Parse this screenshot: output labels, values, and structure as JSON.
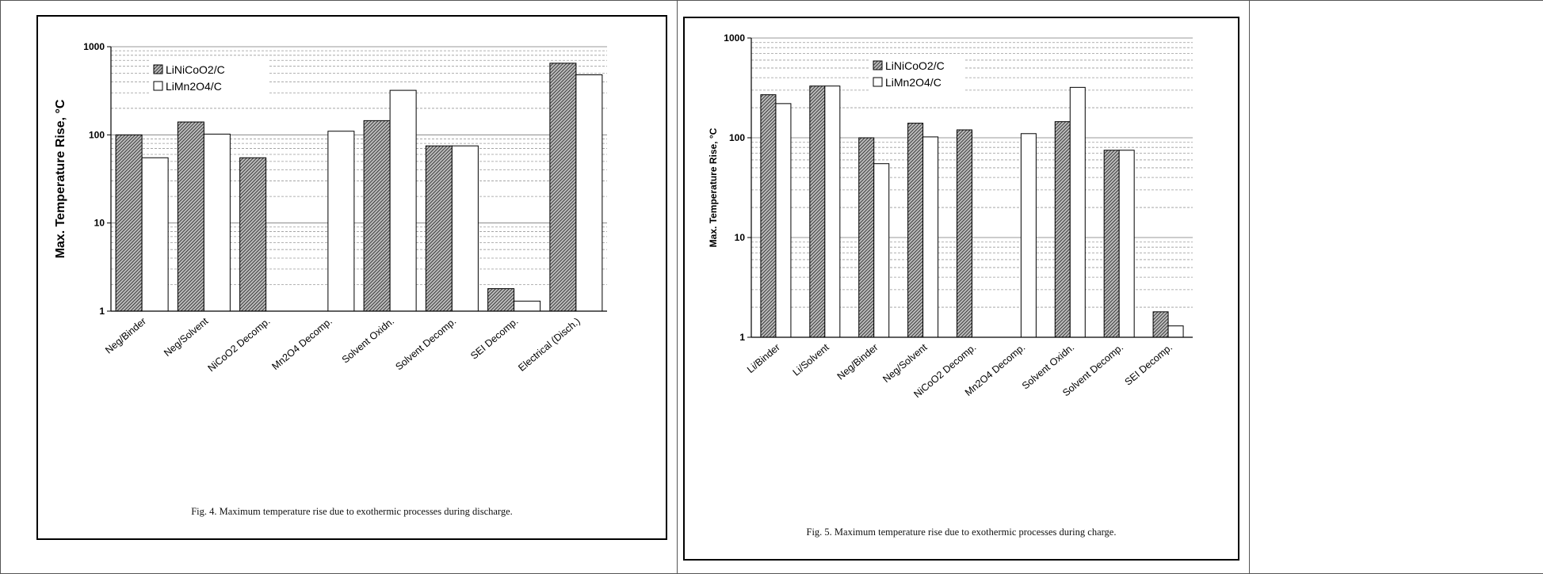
{
  "figures": [
    {
      "caption": "Fig. 4.  Maximum temperature rise due to exothermic processes during discharge.",
      "chart_data": {
        "type": "bar",
        "scale": "log",
        "ylabel": "Max. Temperature Rise, °C",
        "ylim": [
          1,
          1000
        ],
        "yticks": [
          "1",
          "10",
          "100",
          "1000"
        ],
        "categories": [
          "Neg/Binder",
          "Neg/Solvent",
          "NiCoO2 Decomp.",
          "Mn2O4 Decomp.",
          "Solvent Oxidn.",
          "Solvent Decomp.",
          "SEI Decomp.",
          "Electrical (Disch.)"
        ],
        "series": [
          {
            "name": "LiNiCoO2/C",
            "values": [
              100,
              140,
              55,
              null,
              145,
              75,
              1.8,
              650
            ],
            "fill": "hatched"
          },
          {
            "name": "LiMn2O4/C",
            "values": [
              55,
              102,
              null,
              110,
              320,
              75,
              1.3,
              480
            ],
            "fill": "white"
          }
        ],
        "grid": true,
        "legend_position": "top-left"
      }
    },
    {
      "caption": "Fig. 5.  Maximum temperature rise due to exothermic processes during charge.",
      "chart_data": {
        "type": "bar",
        "scale": "log",
        "ylabel": "Max. Temperature Rise, °C",
        "ylim": [
          1,
          1000
        ],
        "yticks": [
          "1",
          "10",
          "100",
          "1000"
        ],
        "categories": [
          "Li/Binder",
          "Li/Solvent",
          "Neg/Binder",
          "Neg/Solvent",
          "NiCoO2 Decomp.",
          "Mn2O4 Decomp.",
          "Solvent Oxidn.",
          "Solvent Decomp.",
          "SEI Decomp."
        ],
        "series": [
          {
            "name": "LiNiCoO2/C",
            "values": [
              270,
              330,
              100,
              140,
              120,
              null,
              145,
              75,
              1.8
            ],
            "fill": "hatched"
          },
          {
            "name": "LiMn2O4/C",
            "values": [
              220,
              330,
              55,
              102,
              null,
              110,
              320,
              75,
              1.3
            ],
            "fill": "white"
          }
        ],
        "grid": true,
        "legend_position": "top-left"
      }
    }
  ]
}
